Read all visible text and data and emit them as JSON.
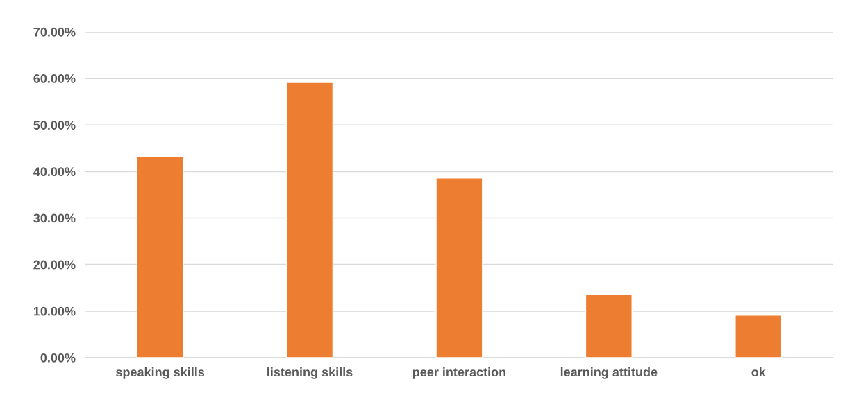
{
  "chart_data": {
    "type": "bar",
    "categories": [
      "speaking skills",
      "listening skills",
      "peer interaction",
      "learning attitude",
      "ok"
    ],
    "values": [
      43.2,
      59.1,
      38.6,
      13.6,
      9.1
    ],
    "color": "#ed7d31",
    "ylim": [
      0,
      70
    ],
    "yticks": [
      {
        "value": 0,
        "label": "0.00%"
      },
      {
        "value": 10,
        "label": "10.00%"
      },
      {
        "value": 20,
        "label": "20.00%"
      },
      {
        "value": 30,
        "label": "30.00%"
      },
      {
        "value": 40,
        "label": "40.00%"
      },
      {
        "value": 50,
        "label": "50.00%"
      },
      {
        "value": 60,
        "label": "60.00%"
      },
      {
        "value": 70,
        "label": "70.00%"
      }
    ],
    "grid": "y",
    "legend": false
  }
}
